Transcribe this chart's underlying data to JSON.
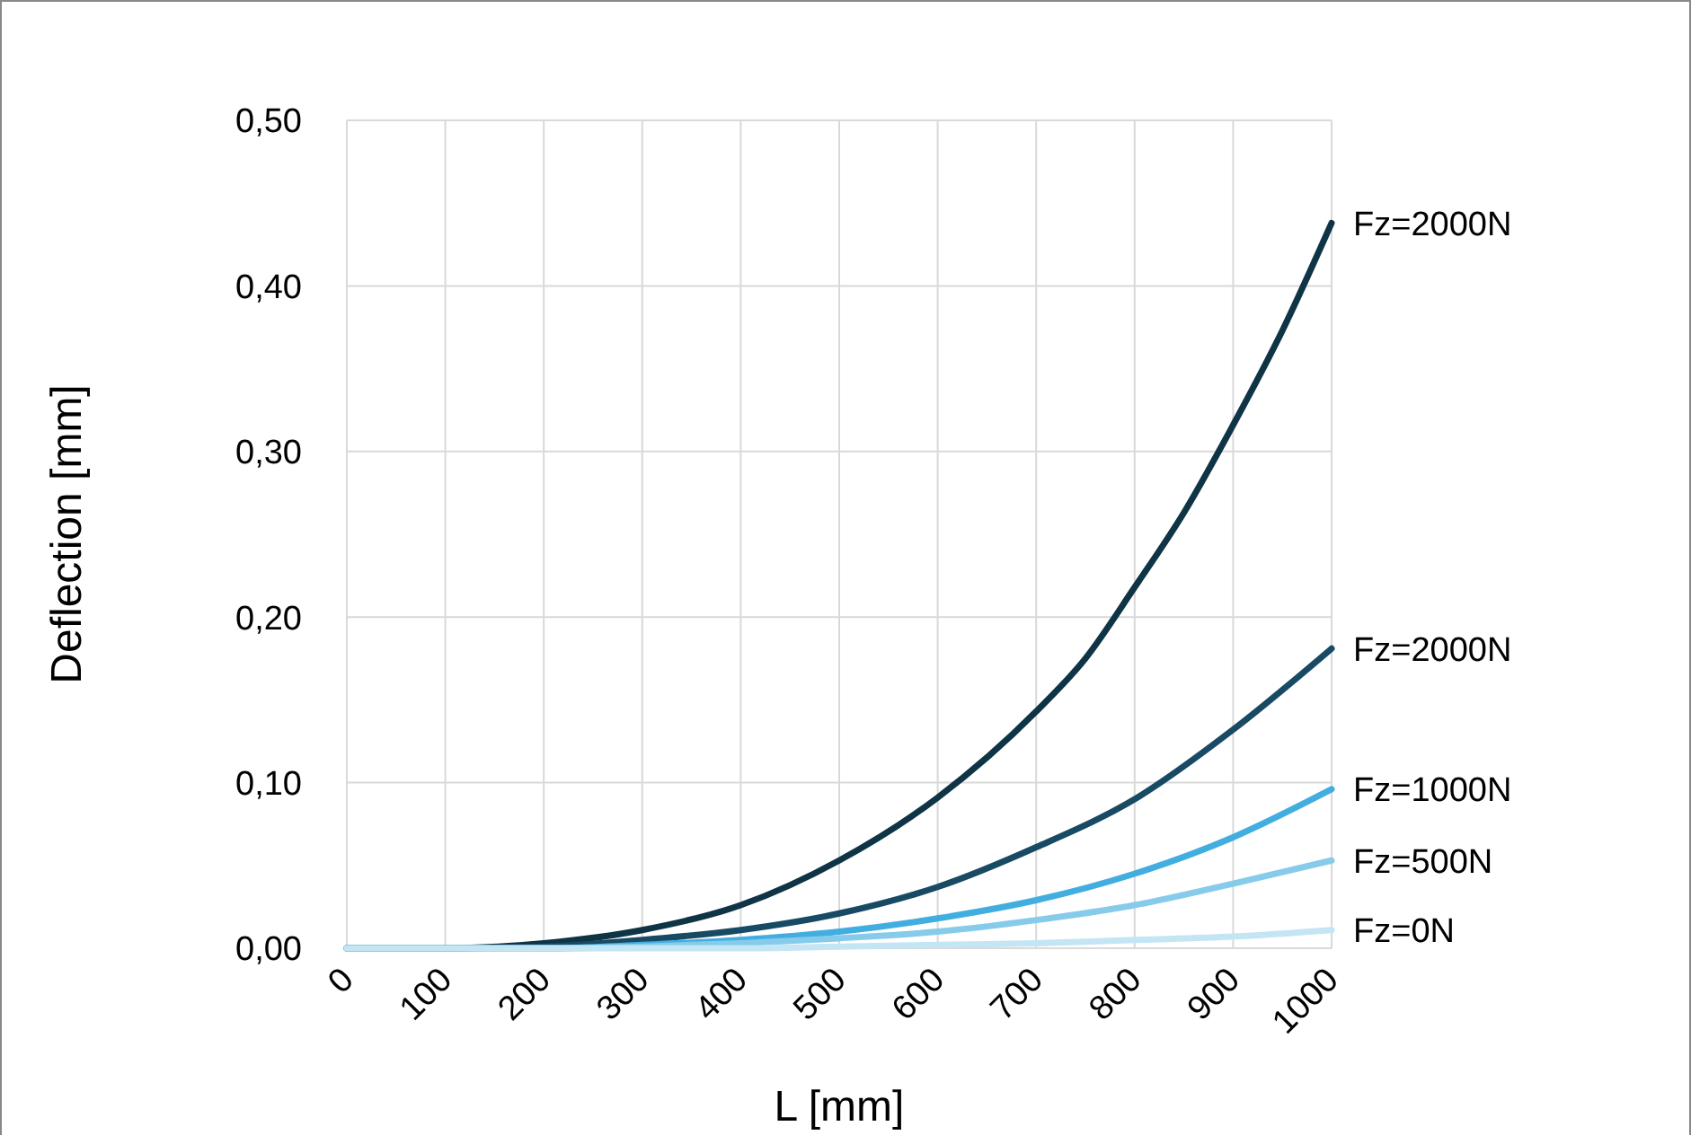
{
  "chart_data": {
    "type": "line",
    "xlabel": "L [mm]",
    "ylabel": "Deflection [mm]",
    "x": [
      0,
      100,
      200,
      300,
      400,
      500,
      600,
      700,
      800,
      900,
      1000
    ],
    "series": [
      {
        "name": "Fz=2000N",
        "color": "#0e3446",
        "x": [
          0,
          100,
          200,
          300,
          400,
          500,
          600,
          700,
          750,
          800,
          850,
          900,
          950,
          1000
        ],
        "values": [
          0,
          0,
          0.003,
          0.011,
          0.026,
          0.053,
          0.091,
          0.143,
          0.175,
          0.218,
          0.263,
          0.316,
          0.373,
          0.438
        ]
      },
      {
        "name": "Fz=2000N",
        "color": "#184a64",
        "values": [
          0,
          0,
          0.001,
          0.005,
          0.011,
          0.021,
          0.037,
          0.061,
          0.09,
          0.132,
          0.181
        ]
      },
      {
        "name": "Fz=1000N",
        "color": "#42aee0",
        "values": [
          0,
          0,
          0,
          0.002,
          0.005,
          0.01,
          0.018,
          0.029,
          0.045,
          0.067,
          0.096
        ]
      },
      {
        "name": "Fz=500N",
        "color": "#86cbea",
        "values": [
          0,
          0,
          0,
          0.001,
          0.003,
          0.006,
          0.01,
          0.017,
          0.026,
          0.039,
          0.053
        ]
      },
      {
        "name": "Fz=0N",
        "color": "#c4e5f4",
        "values": [
          0,
          0,
          0,
          0,
          0,
          0.001,
          0.002,
          0.003,
          0.005,
          0.007,
          0.011
        ]
      }
    ],
    "xlim": [
      0,
      1000
    ],
    "xticks": [
      0,
      100,
      200,
      300,
      400,
      500,
      600,
      700,
      800,
      900,
      1000
    ],
    "ylim": [
      0,
      0.5
    ],
    "yticks": [
      {
        "value": 0,
        "label": "0,00"
      },
      {
        "value": 0.1,
        "label": "0,10"
      },
      {
        "value": 0.2,
        "label": "0,20"
      },
      {
        "value": 0.3,
        "label": "0,30"
      },
      {
        "value": 0.4,
        "label": "0,40"
      },
      {
        "value": 0.5,
        "label": "0,50"
      }
    ],
    "grid": true,
    "marker": "none",
    "line_style": "solid"
  }
}
